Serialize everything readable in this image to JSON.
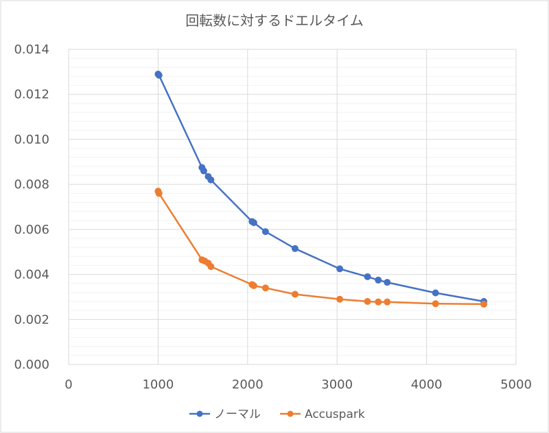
{
  "chart_data": {
    "type": "scatter",
    "title": "回転数に対するドエルタイム",
    "xlabel": "",
    "ylabel": "",
    "xlim": [
      0,
      5000
    ],
    "ylim": [
      0,
      0.014
    ],
    "xticks": [
      "0",
      "1000",
      "2000",
      "3000",
      "4000",
      "5000"
    ],
    "yticks": [
      "0.000",
      "0.002",
      "0.004",
      "0.006",
      "0.008",
      "0.010",
      "0.012",
      "0.014"
    ],
    "grid": "on",
    "legend": "bottom",
    "series": [
      {
        "name": "ノーマル",
        "color": "#4472C4",
        "x": [
          1000,
          1010,
          1490,
          1510,
          1560,
          1590,
          2050,
          2070,
          2200,
          2530,
          3030,
          3340,
          3460,
          3560,
          4100,
          4640
        ],
        "y": [
          0.0129,
          0.01285,
          0.00875,
          0.0086,
          0.00835,
          0.0082,
          0.00635,
          0.0063,
          0.0059,
          0.00515,
          0.00425,
          0.0039,
          0.00375,
          0.00365,
          0.00318,
          0.0028
        ]
      },
      {
        "name": "Accuspark",
        "color": "#ED7D31",
        "x": [
          1000,
          1010,
          1490,
          1520,
          1560,
          1590,
          2050,
          2070,
          2200,
          2530,
          3030,
          3340,
          3460,
          3560,
          4100,
          4640
        ],
        "y": [
          0.0077,
          0.0076,
          0.00465,
          0.0046,
          0.0045,
          0.00435,
          0.00355,
          0.0035,
          0.0034,
          0.00312,
          0.0029,
          0.0028,
          0.00278,
          0.00278,
          0.0027,
          0.00268
        ]
      }
    ]
  }
}
